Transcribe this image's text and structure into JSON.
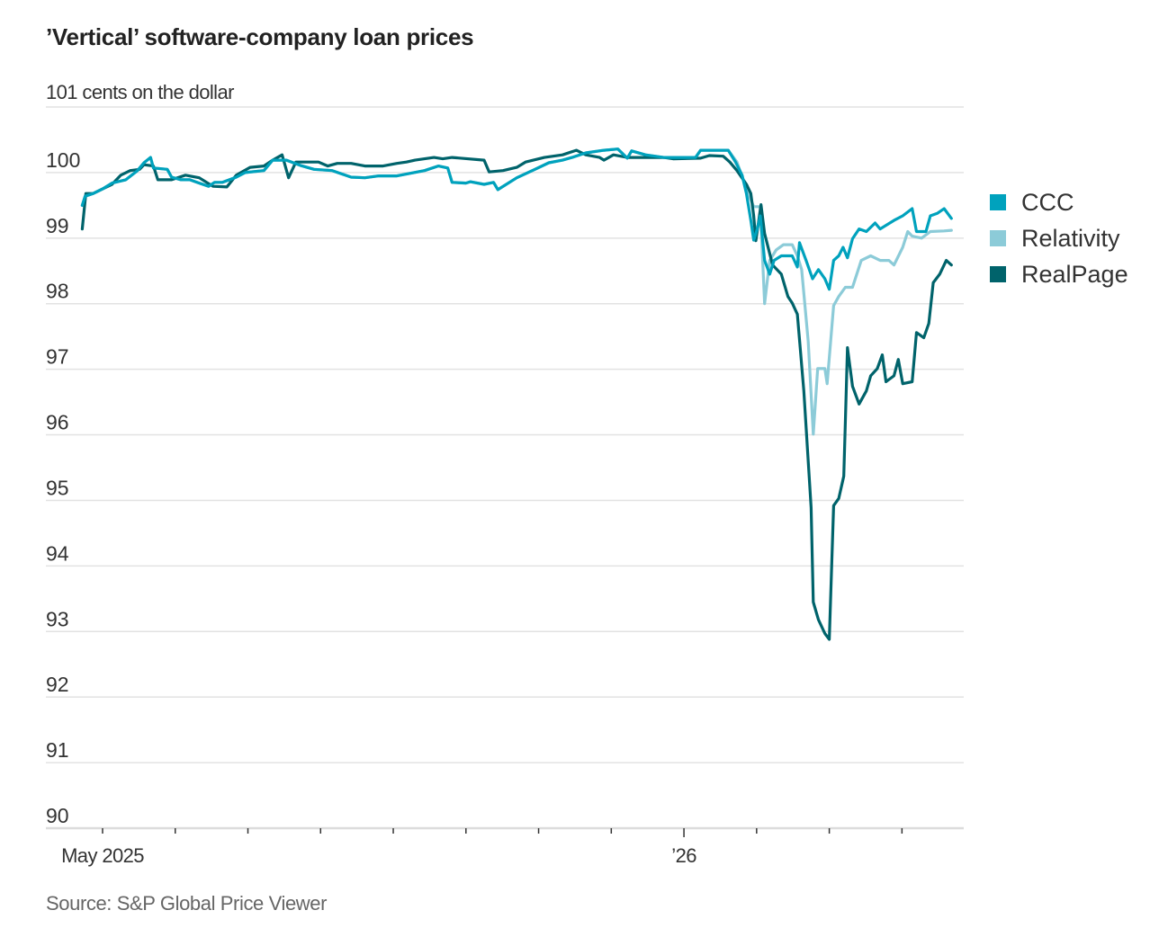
{
  "title": "’Vertical’ software-company loan prices",
  "source": "Source: S&P Global Price Viewer",
  "chart_data": {
    "type": "line",
    "title": "’Vertical’ software-company loan prices",
    "ylabel": "cents on the dollar",
    "y_unit_label": "101 cents on the dollar",
    "xlabel": "",
    "ylim": [
      90,
      101
    ],
    "yticks": [
      {
        "value": 100,
        "label": "100"
      },
      {
        "value": 99,
        "label": "99"
      },
      {
        "value": 98,
        "label": "98"
      },
      {
        "value": 97,
        "label": "97"
      },
      {
        "value": 96,
        "label": "96"
      },
      {
        "value": 95,
        "label": "95"
      },
      {
        "value": 94,
        "label": "94"
      },
      {
        "value": 93,
        "label": "93"
      },
      {
        "value": 92,
        "label": "92"
      },
      {
        "value": 91,
        "label": "91"
      },
      {
        "value": 90,
        "label": "90"
      }
    ],
    "x_unit": "months since May 1, 2025",
    "xlim": [
      -0.78,
      11.85
    ],
    "xticks": [
      {
        "value": 0,
        "label": "May 2025",
        "major": true
      },
      {
        "value": 1,
        "label": "",
        "major": false
      },
      {
        "value": 2,
        "label": "",
        "major": false
      },
      {
        "value": 3,
        "label": "",
        "major": false
      },
      {
        "value": 4,
        "label": "",
        "major": false
      },
      {
        "value": 5,
        "label": "",
        "major": false
      },
      {
        "value": 6,
        "label": "",
        "major": false
      },
      {
        "value": 7,
        "label": "",
        "major": false
      },
      {
        "value": 8,
        "label": "’26",
        "major": true
      },
      {
        "value": 9,
        "label": "",
        "major": false
      },
      {
        "value": 10,
        "label": "",
        "major": false
      },
      {
        "value": 11,
        "label": "",
        "major": false
      }
    ],
    "grid": true,
    "legend_position": "right",
    "series": [
      {
        "name": "Relativity",
        "color": "#8ccbd8",
        "points": [
          [
            -0.28,
            99.5
          ],
          [
            -0.24,
            99.64
          ],
          [
            -0.13,
            99.68
          ],
          [
            0,
            99.75
          ],
          [
            0.13,
            99.84
          ],
          [
            0.32,
            99.89
          ],
          [
            0.48,
            100.03
          ],
          [
            0.57,
            100.15
          ],
          [
            0.66,
            100.23
          ],
          [
            0.7,
            100.07
          ],
          [
            0.89,
            100.05
          ],
          [
            0.95,
            99.93
          ],
          [
            1.08,
            99.89
          ],
          [
            1.2,
            99.89
          ],
          [
            1.33,
            99.84
          ],
          [
            1.46,
            99.79
          ],
          [
            1.54,
            99.85
          ],
          [
            1.65,
            99.85
          ],
          [
            1.84,
            99.93
          ],
          [
            1.96,
            100.0
          ],
          [
            2.22,
            100.03
          ],
          [
            2.34,
            100.19
          ],
          [
            2.53,
            100.19
          ],
          [
            2.72,
            100.11
          ],
          [
            2.91,
            100.05
          ],
          [
            3.16,
            100.03
          ],
          [
            3.42,
            99.93
          ],
          [
            3.61,
            99.92
          ],
          [
            3.8,
            99.95
          ],
          [
            4.05,
            99.95
          ],
          [
            4.43,
            100.03
          ],
          [
            4.62,
            100.1
          ],
          [
            4.75,
            100.07
          ],
          [
            4.81,
            99.85
          ],
          [
            5.0,
            99.84
          ],
          [
            5.06,
            99.86
          ],
          [
            5.25,
            99.82
          ],
          [
            5.38,
            99.85
          ],
          [
            5.44,
            99.74
          ],
          [
            5.7,
            99.92
          ],
          [
            5.95,
            100.05
          ],
          [
            6.14,
            100.15
          ],
          [
            6.33,
            100.19
          ],
          [
            6.46,
            100.23
          ],
          [
            6.65,
            100.3
          ],
          [
            6.9,
            100.34
          ],
          [
            7.09,
            100.36
          ],
          [
            7.22,
            100.22
          ],
          [
            7.28,
            100.33
          ],
          [
            7.47,
            100.27
          ],
          [
            7.72,
            100.23
          ],
          [
            8.16,
            100.23
          ],
          [
            8.23,
            100.34
          ],
          [
            8.61,
            100.34
          ],
          [
            8.73,
            100.16
          ],
          [
            8.86,
            99.75
          ],
          [
            8.96,
            99.48
          ],
          [
            9.05,
            99.48
          ],
          [
            9.11,
            98.0
          ],
          [
            9.18,
            98.66
          ],
          [
            9.27,
            98.82
          ],
          [
            9.37,
            98.9
          ],
          [
            9.49,
            98.9
          ],
          [
            9.56,
            98.73
          ],
          [
            9.62,
            98.52
          ],
          [
            9.71,
            97.42
          ],
          [
            9.78,
            96.01
          ],
          [
            9.84,
            97.01
          ],
          [
            9.94,
            97.01
          ],
          [
            9.97,
            96.78
          ],
          [
            10.06,
            97.97
          ],
          [
            10.13,
            98.11
          ],
          [
            10.22,
            98.25
          ],
          [
            10.32,
            98.25
          ],
          [
            10.44,
            98.66
          ],
          [
            10.57,
            98.73
          ],
          [
            10.7,
            98.66
          ],
          [
            10.82,
            98.66
          ],
          [
            10.89,
            98.59
          ],
          [
            11.01,
            98.86
          ],
          [
            11.08,
            99.1
          ],
          [
            11.14,
            99.03
          ],
          [
            11.27,
            99.0
          ],
          [
            11.39,
            99.1
          ],
          [
            11.58,
            99.11
          ],
          [
            11.68,
            99.12
          ]
        ]
      },
      {
        "name": "RealPage",
        "color": "#00636b",
        "points": [
          [
            -0.28,
            99.14
          ],
          [
            -0.23,
            99.68
          ],
          [
            -0.13,
            99.68
          ],
          [
            0,
            99.75
          ],
          [
            0.13,
            99.82
          ],
          [
            0.25,
            99.96
          ],
          [
            0.38,
            100.03
          ],
          [
            0.51,
            100.05
          ],
          [
            0.57,
            100.12
          ],
          [
            0.7,
            100.1
          ],
          [
            0.76,
            99.89
          ],
          [
            0.95,
            99.89
          ],
          [
            1.14,
            99.96
          ],
          [
            1.33,
            99.92
          ],
          [
            1.52,
            99.79
          ],
          [
            1.71,
            99.78
          ],
          [
            1.84,
            99.96
          ],
          [
            2.03,
            100.08
          ],
          [
            2.22,
            100.1
          ],
          [
            2.34,
            100.19
          ],
          [
            2.47,
            100.27
          ],
          [
            2.56,
            99.92
          ],
          [
            2.66,
            100.16
          ],
          [
            2.97,
            100.16
          ],
          [
            3.1,
            100.1
          ],
          [
            3.23,
            100.14
          ],
          [
            3.42,
            100.14
          ],
          [
            3.61,
            100.1
          ],
          [
            3.86,
            100.1
          ],
          [
            4.05,
            100.14
          ],
          [
            4.18,
            100.16
          ],
          [
            4.3,
            100.19
          ],
          [
            4.56,
            100.23
          ],
          [
            4.68,
            100.21
          ],
          [
            4.81,
            100.23
          ],
          [
            5.25,
            100.19
          ],
          [
            5.32,
            100.01
          ],
          [
            5.51,
            100.03
          ],
          [
            5.7,
            100.08
          ],
          [
            5.82,
            100.16
          ],
          [
            6.08,
            100.23
          ],
          [
            6.33,
            100.27
          ],
          [
            6.52,
            100.34
          ],
          [
            6.65,
            100.27
          ],
          [
            6.84,
            100.23
          ],
          [
            6.9,
            100.19
          ],
          [
            7.03,
            100.27
          ],
          [
            7.22,
            100.23
          ],
          [
            7.72,
            100.23
          ],
          [
            7.85,
            100.21
          ],
          [
            8.23,
            100.22
          ],
          [
            8.35,
            100.26
          ],
          [
            8.54,
            100.25
          ],
          [
            8.63,
            100.16
          ],
          [
            8.73,
            100.03
          ],
          [
            8.86,
            99.82
          ],
          [
            8.92,
            99.68
          ],
          [
            8.96,
            99.34
          ],
          [
            8.99,
            98.96
          ],
          [
            9.06,
            99.51
          ],
          [
            9.11,
            99.07
          ],
          [
            9.22,
            98.59
          ],
          [
            9.34,
            98.45
          ],
          [
            9.43,
            98.11
          ],
          [
            9.49,
            98.01
          ],
          [
            9.56,
            97.84
          ],
          [
            9.65,
            96.67
          ],
          [
            9.75,
            94.89
          ],
          [
            9.78,
            93.45
          ],
          [
            9.85,
            93.18
          ],
          [
            9.94,
            92.97
          ],
          [
            10.0,
            92.88
          ],
          [
            10.06,
            94.92
          ],
          [
            10.13,
            95.03
          ],
          [
            10.2,
            95.37
          ],
          [
            10.25,
            97.33
          ],
          [
            10.32,
            96.74
          ],
          [
            10.41,
            96.47
          ],
          [
            10.51,
            96.67
          ],
          [
            10.57,
            96.9
          ],
          [
            10.66,
            97.01
          ],
          [
            10.73,
            97.22
          ],
          [
            10.78,
            96.81
          ],
          [
            10.89,
            96.9
          ],
          [
            10.95,
            97.15
          ],
          [
            11.01,
            96.78
          ],
          [
            11.14,
            96.81
          ],
          [
            11.2,
            97.56
          ],
          [
            11.3,
            97.48
          ],
          [
            11.37,
            97.7
          ],
          [
            11.43,
            98.32
          ],
          [
            11.52,
            98.45
          ],
          [
            11.61,
            98.66
          ],
          [
            11.68,
            98.59
          ]
        ]
      },
      {
        "name": "CCC",
        "color": "#00a2bd",
        "points": [
          [
            -0.28,
            99.5
          ],
          [
            -0.24,
            99.64
          ],
          [
            -0.13,
            99.68
          ],
          [
            0,
            99.75
          ],
          [
            0.13,
            99.84
          ],
          [
            0.32,
            99.89
          ],
          [
            0.48,
            100.03
          ],
          [
            0.57,
            100.15
          ],
          [
            0.66,
            100.23
          ],
          [
            0.7,
            100.07
          ],
          [
            0.89,
            100.05
          ],
          [
            0.95,
            99.93
          ],
          [
            1.08,
            99.89
          ],
          [
            1.2,
            99.89
          ],
          [
            1.33,
            99.84
          ],
          [
            1.46,
            99.79
          ],
          [
            1.54,
            99.85
          ],
          [
            1.65,
            99.85
          ],
          [
            1.84,
            99.93
          ],
          [
            1.96,
            100.0
          ],
          [
            2.22,
            100.03
          ],
          [
            2.34,
            100.19
          ],
          [
            2.53,
            100.19
          ],
          [
            2.72,
            100.11
          ],
          [
            2.91,
            100.05
          ],
          [
            3.16,
            100.03
          ],
          [
            3.42,
            99.93
          ],
          [
            3.61,
            99.92
          ],
          [
            3.8,
            99.95
          ],
          [
            4.05,
            99.95
          ],
          [
            4.43,
            100.03
          ],
          [
            4.62,
            100.1
          ],
          [
            4.75,
            100.07
          ],
          [
            4.81,
            99.85
          ],
          [
            5.0,
            99.84
          ],
          [
            5.06,
            99.86
          ],
          [
            5.25,
            99.82
          ],
          [
            5.38,
            99.85
          ],
          [
            5.44,
            99.74
          ],
          [
            5.7,
            99.92
          ],
          [
            5.95,
            100.05
          ],
          [
            6.14,
            100.15
          ],
          [
            6.33,
            100.19
          ],
          [
            6.46,
            100.23
          ],
          [
            6.65,
            100.3
          ],
          [
            6.9,
            100.34
          ],
          [
            7.09,
            100.36
          ],
          [
            7.22,
            100.22
          ],
          [
            7.28,
            100.33
          ],
          [
            7.47,
            100.27
          ],
          [
            7.72,
            100.23
          ],
          [
            8.16,
            100.23
          ],
          [
            8.23,
            100.34
          ],
          [
            8.61,
            100.34
          ],
          [
            8.71,
            100.16
          ],
          [
            8.8,
            99.96
          ],
          [
            8.86,
            99.68
          ],
          [
            8.92,
            99.27
          ],
          [
            8.96,
            98.97
          ],
          [
            9.01,
            99.14
          ],
          [
            9.05,
            99.34
          ],
          [
            9.11,
            98.66
          ],
          [
            9.18,
            98.45
          ],
          [
            9.24,
            98.66
          ],
          [
            9.34,
            98.73
          ],
          [
            9.49,
            98.73
          ],
          [
            9.56,
            98.56
          ],
          [
            9.59,
            98.93
          ],
          [
            9.68,
            98.66
          ],
          [
            9.77,
            98.38
          ],
          [
            9.85,
            98.52
          ],
          [
            9.94,
            98.38
          ],
          [
            10.0,
            98.22
          ],
          [
            10.06,
            98.66
          ],
          [
            10.13,
            98.73
          ],
          [
            10.19,
            98.86
          ],
          [
            10.25,
            98.7
          ],
          [
            10.32,
            98.99
          ],
          [
            10.41,
            99.14
          ],
          [
            10.51,
            99.1
          ],
          [
            10.63,
            99.23
          ],
          [
            10.7,
            99.14
          ],
          [
            10.89,
            99.27
          ],
          [
            11.01,
            99.34
          ],
          [
            11.14,
            99.45
          ],
          [
            11.2,
            99.1
          ],
          [
            11.33,
            99.1
          ],
          [
            11.39,
            99.34
          ],
          [
            11.49,
            99.38
          ],
          [
            11.58,
            99.45
          ],
          [
            11.68,
            99.3
          ]
        ]
      }
    ],
    "legend": [
      {
        "name": "CCC",
        "color": "#00a2bd"
      },
      {
        "name": "Relativity",
        "color": "#8ccbd8"
      },
      {
        "name": "RealPage",
        "color": "#00636b"
      }
    ]
  }
}
